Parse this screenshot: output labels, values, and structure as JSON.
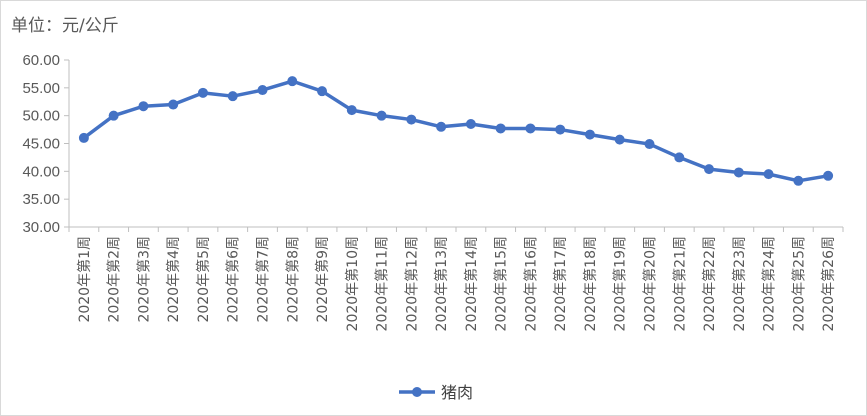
{
  "unit_label": "单位：元/公斤",
  "chart_data": {
    "type": "line",
    "title": "",
    "xlabel": "",
    "ylabel": "",
    "ylim": [
      30,
      60
    ],
    "yticks": [
      "30.00",
      "35.00",
      "40.00",
      "45.00",
      "50.00",
      "55.00",
      "60.00"
    ],
    "grid": false,
    "legend_position": "bottom",
    "categories": [
      "2020年第1周",
      "2020年第2周",
      "2020年第3周",
      "2020年第4周",
      "2020年第5周",
      "2020年第6周",
      "2020年第7周",
      "2020年第8周",
      "2020年第9周",
      "2020年第10周",
      "2020年第11周",
      "2020年第12周",
      "2020年第13周",
      "2020年第14周",
      "2020年第15周",
      "2020年第16周",
      "2020年第17周",
      "2020年第18周",
      "2020年第19周",
      "2020年第20周",
      "2020年第21周",
      "2020年第22周",
      "2020年第23周",
      "2020年第24周",
      "2020年第25周",
      "2020年第26周"
    ],
    "series": [
      {
        "name": "猪肉",
        "color": "#4472c4",
        "values": [
          46.0,
          50.0,
          51.7,
          52.0,
          54.1,
          53.5,
          54.6,
          56.2,
          54.4,
          51.0,
          50.0,
          49.3,
          48.0,
          48.5,
          47.7,
          47.7,
          47.5,
          46.6,
          45.7,
          44.9,
          42.5,
          40.4,
          39.8,
          39.5,
          38.3,
          39.2
        ]
      }
    ]
  }
}
